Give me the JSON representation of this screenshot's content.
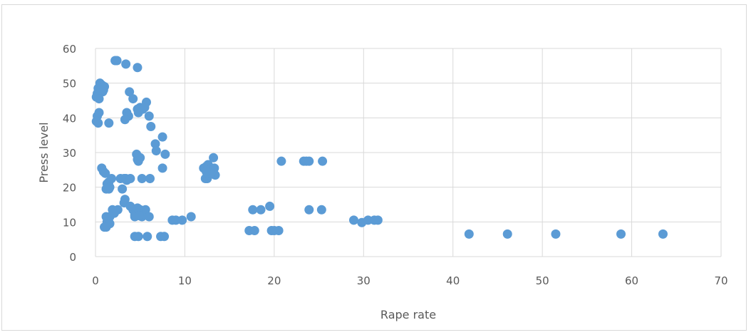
{
  "chart_data": {
    "type": "scatter",
    "xlabel": "Rape rate",
    "ylabel": "Press level",
    "xlim": [
      0,
      70
    ],
    "ylim": [
      0,
      60
    ],
    "xticks": [
      "0",
      "10",
      "20",
      "30",
      "40",
      "50",
      "60",
      "70"
    ],
    "yticks": [
      "0",
      "10",
      "20",
      "30",
      "40",
      "50",
      "60"
    ],
    "grid": true,
    "marker_color": "#5b9bd5",
    "gridline_color": "#d9d9d9",
    "points": [
      [
        0.1,
        46
      ],
      [
        0.2,
        47
      ],
      [
        0.3,
        48.5
      ],
      [
        0.5,
        50
      ],
      [
        0.7,
        49.5
      ],
      [
        0.8,
        47.5
      ],
      [
        1.0,
        49
      ],
      [
        0.6,
        48
      ],
      [
        0.4,
        45.5
      ],
      [
        0.9,
        48
      ],
      [
        0.2,
        40.5
      ],
      [
        0.4,
        41.5
      ],
      [
        0.3,
        38.5
      ],
      [
        0.1,
        39
      ],
      [
        1.5,
        38.5
      ],
      [
        2.2,
        56.5
      ],
      [
        2.4,
        56.5
      ],
      [
        3.4,
        55.5
      ],
      [
        4.7,
        54.5
      ],
      [
        3.8,
        47.5
      ],
      [
        4.2,
        45.5
      ],
      [
        3.5,
        41.5
      ],
      [
        3.7,
        40.5
      ],
      [
        3.3,
        39.5
      ],
      [
        4.7,
        42.5
      ],
      [
        5.0,
        43
      ],
      [
        5.3,
        42.5
      ],
      [
        5.7,
        44.5
      ],
      [
        5.5,
        43
      ],
      [
        4.8,
        41.5
      ],
      [
        6.0,
        40.5
      ],
      [
        6.2,
        37.5
      ],
      [
        7.5,
        34.5
      ],
      [
        6.7,
        32.5
      ],
      [
        6.8,
        30.5
      ],
      [
        7.8,
        29.5
      ],
      [
        7.5,
        25.5
      ],
      [
        4.6,
        29.5
      ],
      [
        4.7,
        28
      ],
      [
        5.0,
        28.5
      ],
      [
        4.8,
        27.5
      ],
      [
        0.7,
        25.5
      ],
      [
        0.9,
        24.5
      ],
      [
        1.1,
        24
      ],
      [
        1.3,
        21
      ],
      [
        1.5,
        21.5
      ],
      [
        1.8,
        22.5
      ],
      [
        1.2,
        19.5
      ],
      [
        1.5,
        19.5
      ],
      [
        1.6,
        20
      ],
      [
        2.8,
        22.5
      ],
      [
        3.2,
        22.5
      ],
      [
        3.5,
        22
      ],
      [
        3.4,
        22.5
      ],
      [
        3.9,
        22.5
      ],
      [
        5.2,
        22.5
      ],
      [
        6.1,
        22.5
      ],
      [
        3.0,
        19.5
      ],
      [
        3.3,
        16.5
      ],
      [
        3.2,
        15.5
      ],
      [
        1.9,
        13.5
      ],
      [
        2.5,
        13.5
      ],
      [
        2.1,
        12.5
      ],
      [
        1.2,
        11.5
      ],
      [
        1.6,
        11.5
      ],
      [
        1.3,
        10
      ],
      [
        1.6,
        9.5
      ],
      [
        1.0,
        8.5
      ],
      [
        1.2,
        8.5
      ],
      [
        3.9,
        14.5
      ],
      [
        4.2,
        13.5
      ],
      [
        4.5,
        13
      ],
      [
        4.7,
        14
      ],
      [
        5.0,
        13.5
      ],
      [
        5.6,
        13.5
      ],
      [
        4.4,
        12
      ],
      [
        4.8,
        12.5
      ],
      [
        5.2,
        11.5
      ],
      [
        6.0,
        11.5
      ],
      [
        4.4,
        11.5
      ],
      [
        4.9,
        11.8
      ],
      [
        4.4,
        5.8
      ],
      [
        4.8,
        5.8
      ],
      [
        5.8,
        5.8
      ],
      [
        7.3,
        5.8
      ],
      [
        7.7,
        5.8
      ],
      [
        8.6,
        10.5
      ],
      [
        9.0,
        10.5
      ],
      [
        9.7,
        10.5
      ],
      [
        10.7,
        11.5
      ],
      [
        12.1,
        25.5
      ],
      [
        12.4,
        26
      ],
      [
        12.6,
        26.5
      ],
      [
        12.8,
        25
      ],
      [
        13.0,
        25.5
      ],
      [
        13.2,
        24.5
      ],
      [
        13.3,
        25.5
      ],
      [
        13.4,
        23.5
      ],
      [
        13.2,
        28.5
      ],
      [
        12.3,
        22.5
      ],
      [
        12.5,
        22.5
      ],
      [
        12.7,
        23.5
      ],
      [
        12.9,
        24
      ],
      [
        12.4,
        24.5
      ],
      [
        17.2,
        7.5
      ],
      [
        17.8,
        7.5
      ],
      [
        17.6,
        13.5
      ],
      [
        18.5,
        13.5
      ],
      [
        19.5,
        14.5
      ],
      [
        19.7,
        7.5
      ],
      [
        20.0,
        7.5
      ],
      [
        20.5,
        7.5
      ],
      [
        20.8,
        27.5
      ],
      [
        23.3,
        27.5
      ],
      [
        23.6,
        27.5
      ],
      [
        23.9,
        27.5
      ],
      [
        23.9,
        13.5
      ],
      [
        25.3,
        13.5
      ],
      [
        25.4,
        27.5
      ],
      [
        28.9,
        10.5
      ],
      [
        29.8,
        9.8
      ],
      [
        30.5,
        10.5
      ],
      [
        31.2,
        10.5
      ],
      [
        31.6,
        10.5
      ],
      [
        41.8,
        6.5
      ],
      [
        46.1,
        6.5
      ],
      [
        51.5,
        6.5
      ],
      [
        58.8,
        6.5
      ],
      [
        63.5,
        6.5
      ]
    ]
  }
}
